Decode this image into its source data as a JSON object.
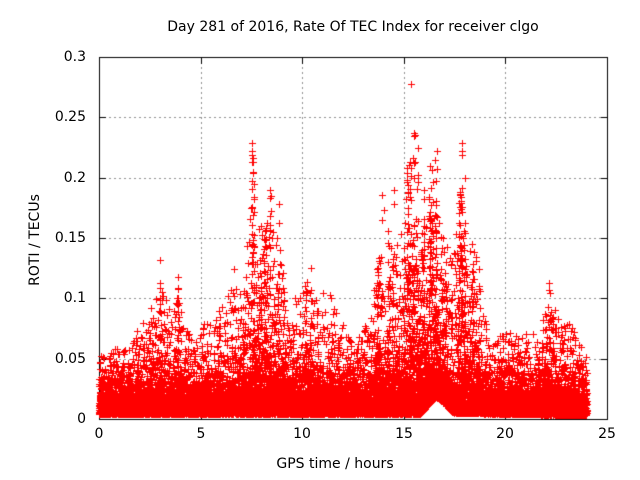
{
  "page": {
    "background": "#ffffff"
  },
  "chart_data": {
    "type": "scatter",
    "title": "Day 281 of 2016, Rate Of TEC Index for receiver clgo",
    "xlabel": "GPS time / hours",
    "ylabel": "ROTI / TECUs",
    "xlim": [
      0,
      25
    ],
    "ylim": [
      0,
      0.3
    ],
    "xticks": [
      0,
      5,
      10,
      15,
      20,
      25
    ],
    "xtick_labels": [
      "0",
      "5",
      "10",
      "15",
      "20",
      "25"
    ],
    "yticks": [
      0,
      0.05,
      0.1,
      0.15,
      0.2,
      0.25,
      0.3
    ],
    "ytick_labels": [
      "0",
      "0.05",
      "0.1",
      "0.15",
      "0.2",
      "0.25",
      "0.3"
    ],
    "grid": "dashed gray grid at major ticks, both axes, mirrored tick marks on all four frame sides",
    "legend": "none",
    "marker": "plus",
    "marker_color": "#ff0000",
    "grid_color": "#909090",
    "frame_color": "#000000",
    "text_color": "#000000",
    "data_x_extent": [
      0,
      24
    ],
    "point_count": 15000,
    "seed": 281,
    "upper_envelope": [
      [
        0,
        0.055
      ],
      [
        0.5,
        0.06
      ],
      [
        1,
        0.062
      ],
      [
        1.5,
        0.075
      ],
      [
        2,
        0.085
      ],
      [
        2.4,
        0.095
      ],
      [
        2.8,
        0.105
      ],
      [
        3,
        0.132
      ],
      [
        3.2,
        0.11
      ],
      [
        3.6,
        0.09
      ],
      [
        3.9,
        0.118
      ],
      [
        4.2,
        0.08
      ],
      [
        4.7,
        0.072
      ],
      [
        5.2,
        0.085
      ],
      [
        5.7,
        0.095
      ],
      [
        6.2,
        0.1
      ],
      [
        6.6,
        0.125
      ],
      [
        7,
        0.11
      ],
      [
        7.3,
        0.16
      ],
      [
        7.55,
        0.229
      ],
      [
        7.8,
        0.185
      ],
      [
        8.1,
        0.165
      ],
      [
        8.4,
        0.19
      ],
      [
        8.65,
        0.155
      ],
      [
        8.9,
        0.178
      ],
      [
        9.2,
        0.085
      ],
      [
        9.6,
        0.105
      ],
      [
        10,
        0.117
      ],
      [
        10.4,
        0.125
      ],
      [
        10.8,
        0.105
      ],
      [
        11.2,
        0.122
      ],
      [
        11.6,
        0.095
      ],
      [
        12,
        0.088
      ],
      [
        12.5,
        0.068
      ],
      [
        13,
        0.08
      ],
      [
        13.4,
        0.09
      ],
      [
        13.8,
        0.165
      ],
      [
        14,
        0.185
      ],
      [
        14.2,
        0.165
      ],
      [
        14.5,
        0.19
      ],
      [
        14.8,
        0.155
      ],
      [
        15.1,
        0.21
      ],
      [
        15.4,
        0.278
      ],
      [
        15.7,
        0.225
      ],
      [
        16,
        0.19
      ],
      [
        16.3,
        0.215
      ],
      [
        16.6,
        0.223
      ],
      [
        16.9,
        0.175
      ],
      [
        17.2,
        0.16
      ],
      [
        17.5,
        0.145
      ],
      [
        17.85,
        0.229
      ],
      [
        18.1,
        0.16
      ],
      [
        18.5,
        0.162
      ],
      [
        18.9,
        0.105
      ],
      [
        19.3,
        0.06
      ],
      [
        19.7,
        0.076
      ],
      [
        20.2,
        0.076
      ],
      [
        20.7,
        0.072
      ],
      [
        21.2,
        0.072
      ],
      [
        21.6,
        0.084
      ],
      [
        22,
        0.1
      ],
      [
        22.2,
        0.113
      ],
      [
        22.6,
        0.092
      ],
      [
        23,
        0.086
      ],
      [
        23.3,
        0.08
      ],
      [
        23.6,
        0.066
      ],
      [
        24,
        0.055
      ]
    ],
    "lower_bound": [
      [
        0,
        0.004
      ],
      [
        15.8,
        0.004
      ],
      [
        16.2,
        0.012
      ],
      [
        16.6,
        0.018
      ],
      [
        17,
        0.013
      ],
      [
        17.4,
        0.005
      ],
      [
        24,
        0.003
      ]
    ],
    "peak_points": [
      [
        15.37,
        0.278
      ],
      [
        7.55,
        0.229
      ],
      [
        7.55,
        0.222
      ],
      [
        7.52,
        0.213
      ],
      [
        7.6,
        0.205
      ],
      [
        17.84,
        0.229
      ],
      [
        17.84,
        0.222
      ],
      [
        16.62,
        0.222
      ],
      [
        16.55,
        0.215
      ],
      [
        16.3,
        0.21
      ],
      [
        15.15,
        0.208
      ],
      [
        15.7,
        0.225
      ],
      [
        16,
        0.19
      ],
      [
        18,
        0.2
      ],
      [
        8.4,
        0.19
      ],
      [
        8.45,
        0.185
      ],
      [
        8.87,
        0.178
      ],
      [
        13.92,
        0.186
      ],
      [
        14.5,
        0.19
      ],
      [
        3,
        0.132
      ],
      [
        10.42,
        0.125
      ],
      [
        6.63,
        0.124
      ],
      [
        22.16,
        0.113
      ],
      [
        3.9,
        0.118
      ]
    ]
  }
}
